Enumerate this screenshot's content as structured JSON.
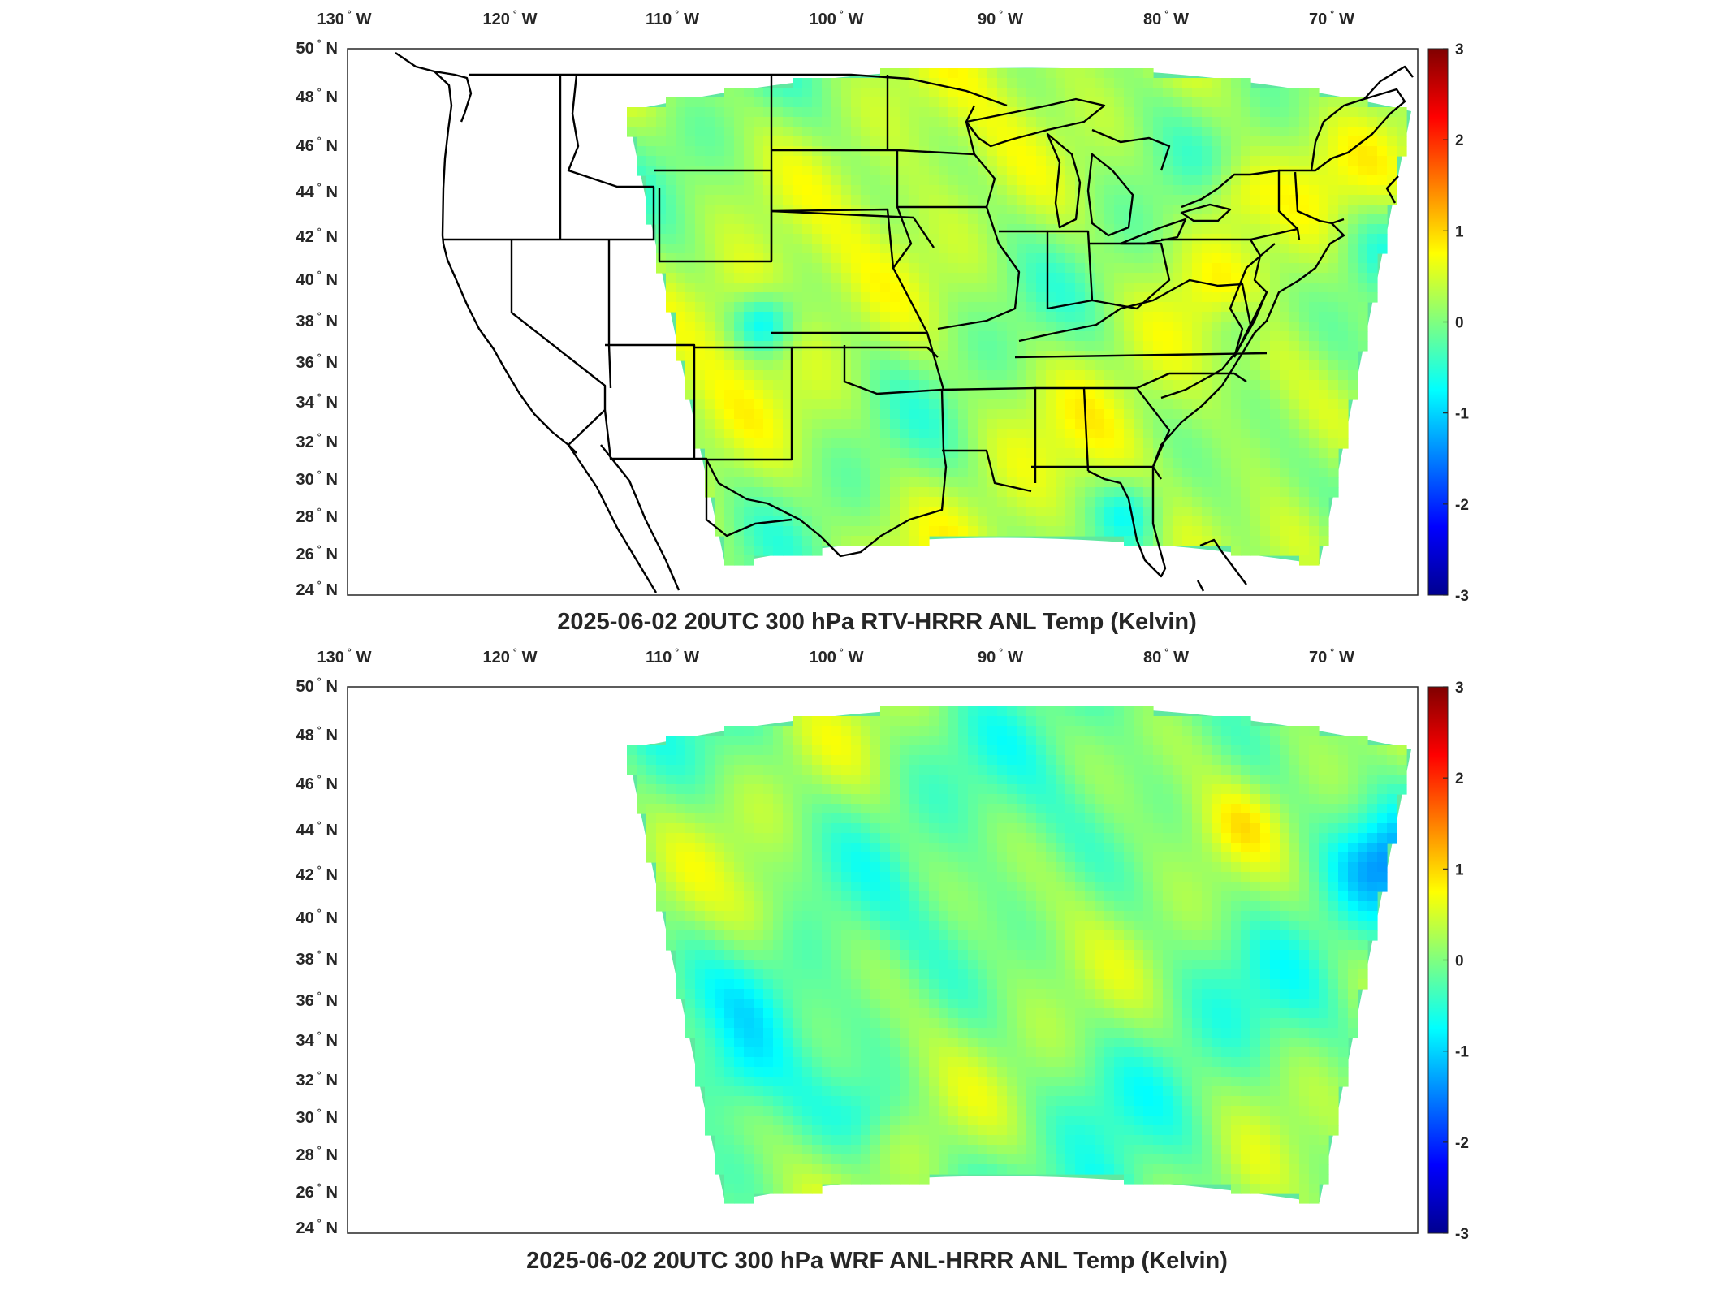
{
  "colorbar": {
    "ticks": [
      "3",
      "2",
      "1",
      "0",
      "-1",
      "-2",
      "-3"
    ],
    "colormap": "jet",
    "colors": [
      "#00008f",
      "#0000ff",
      "#00ffff",
      "#ffff00",
      "#ff0000",
      "#800000"
    ],
    "range": [
      -3,
      3
    ]
  },
  "panels": [
    {
      "title": "2025-06-02 20UTC 300 hPa RTV-HRRR ANL Temp (Kelvin)",
      "lon_labels": [
        "130",
        "120",
        "110",
        "100",
        "90",
        "80",
        "70"
      ],
      "lon_suffix": "W",
      "lat_labels": [
        "50",
        "48",
        "46",
        "44",
        "42",
        "40",
        "38",
        "36",
        "34",
        "32",
        "30",
        "28",
        "26",
        "24"
      ],
      "lat_suffix": "N",
      "field_bias": 0.25
    },
    {
      "title": "2025-06-02 20UTC 300 hPa WRF ANL-HRRR ANL Temp (Kelvin)",
      "lon_labels": [
        "130",
        "120",
        "110",
        "100",
        "90",
        "80",
        "70"
      ],
      "lon_suffix": "W",
      "lat_labels": [
        "50",
        "48",
        "46",
        "44",
        "42",
        "40",
        "38",
        "36",
        "34",
        "32",
        "30",
        "28",
        "26",
        "24"
      ],
      "lat_suffix": "N",
      "field_bias": -0.05
    }
  ]
}
